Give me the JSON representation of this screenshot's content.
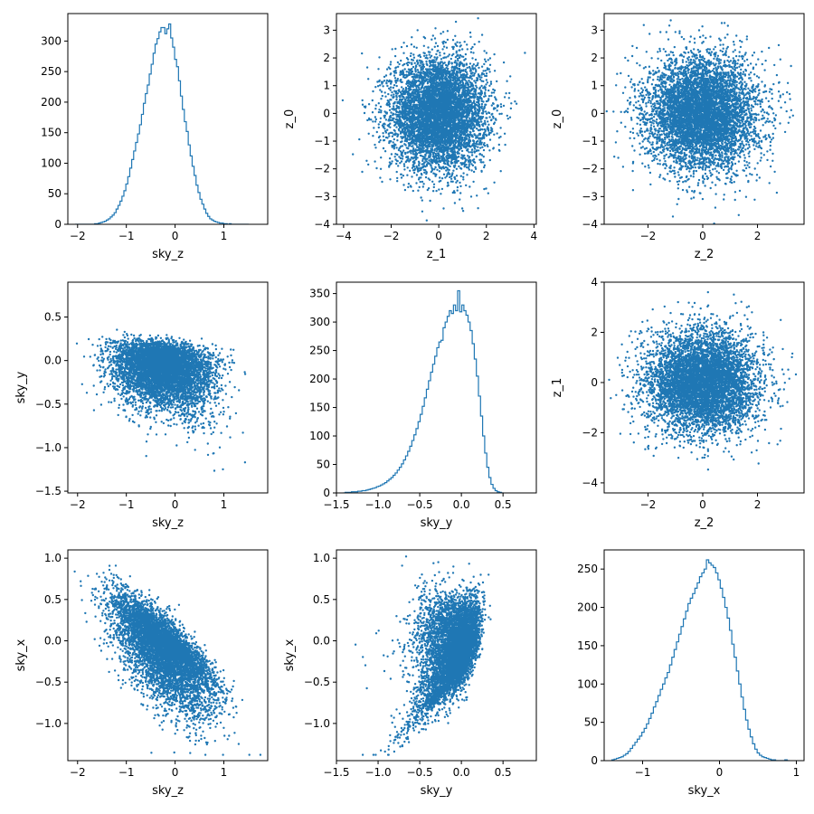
{
  "chart_data": [
    {
      "type": "histogram",
      "xlabel": "sky_z",
      "ylabel": "",
      "xlim": [
        -2.2,
        1.9
      ],
      "ylim": [
        0,
        345
      ],
      "xticks": [
        -2,
        -1,
        0,
        1
      ],
      "xtick_labels": [
        "−2",
        "−1",
        "0",
        "1"
      ],
      "yticks": [
        0,
        50,
        100,
        150,
        200,
        250,
        300
      ],
      "ytick_labels": [
        "0",
        "50",
        "100",
        "150",
        "200",
        "250",
        "300"
      ],
      "bin_start": -2.05,
      "bin_width": 0.04,
      "counts": [
        0,
        0,
        0,
        0,
        0,
        0,
        0,
        0,
        0,
        0,
        1,
        1,
        2,
        3,
        4,
        5,
        7,
        9,
        12,
        15,
        19,
        25,
        31,
        38,
        46,
        55,
        66,
        78,
        92,
        106,
        120,
        134,
        148,
        163,
        180,
        198,
        214,
        228,
        246,
        262,
        280,
        295,
        304,
        315,
        322,
        322,
        312,
        320,
        328,
        305,
        290,
        270,
        258,
        235,
        210,
        188,
        168,
        152,
        130,
        112,
        95,
        80,
        64,
        52,
        41,
        33,
        25,
        18,
        13,
        9,
        7,
        5,
        4,
        3,
        2,
        2,
        1,
        1,
        0,
        1,
        0,
        0,
        0,
        0,
        0,
        0,
        0,
        0,
        0
      ],
      "color": "#1f77b4"
    },
    {
      "type": "scatter",
      "xlabel": "z_1",
      "ylabel": "z_0",
      "xlim": [
        -4.3,
        4.1
      ],
      "ylim": [
        -4.0,
        3.6
      ],
      "xticks": [
        -4,
        -2,
        0,
        2,
        4
      ],
      "xtick_labels": [
        "−4",
        "−2",
        "0",
        "2",
        "4"
      ],
      "yticks": [
        -4,
        -3,
        -2,
        -1,
        0,
        1,
        2,
        3
      ],
      "ytick_labels": [
        "−4",
        "−3",
        "−2",
        "−1",
        "0",
        "1",
        "2",
        "3"
      ],
      "distribution": {
        "kind": "independent-normal",
        "x_mean": 0,
        "x_sd": 1,
        "y_mean": 0,
        "y_sd": 1,
        "points": 6000
      },
      "color": "#1f77b4"
    },
    {
      "type": "scatter",
      "xlabel": "z_2",
      "ylabel": "z_0",
      "xlim": [
        -3.6,
        3.7
      ],
      "ylim": [
        -4.0,
        3.6
      ],
      "xticks": [
        -2,
        0,
        2
      ],
      "xtick_labels": [
        "−2",
        "0",
        "2"
      ],
      "yticks": [
        -4,
        -3,
        -2,
        -1,
        0,
        1,
        2,
        3
      ],
      "ytick_labels": [
        "−4",
        "−3",
        "−2",
        "−1",
        "0",
        "1",
        "2",
        "3"
      ],
      "distribution": {
        "kind": "independent-normal",
        "x_mean": 0,
        "x_sd": 1,
        "y_mean": 0,
        "y_sd": 1,
        "points": 6000
      },
      "color": "#1f77b4"
    },
    {
      "type": "scatter",
      "xlabel": "sky_z",
      "ylabel": "sky_y",
      "xlim": [
        -2.2,
        1.9
      ],
      "ylim": [
        -1.52,
        0.9
      ],
      "xticks": [
        -2,
        -1,
        0,
        1
      ],
      "xtick_labels": [
        "−2",
        "−1",
        "0",
        "1"
      ],
      "yticks": [
        -1.5,
        -1.0,
        -0.5,
        0.0,
        0.5
      ],
      "ytick_labels": [
        "−1.5",
        "−1.0",
        "−0.5",
        "0.0",
        "0.5"
      ],
      "distribution": {
        "kind": "sky-projection",
        "x_axis": "sky_z",
        "y_axis": "sky_y",
        "points": 6000
      },
      "color": "#1f77b4"
    },
    {
      "type": "histogram",
      "xlabel": "sky_y",
      "ylabel": "",
      "xlim": [
        -1.5,
        0.9
      ],
      "ylim": [
        0,
        370
      ],
      "xticks": [
        -1.5,
        -1.0,
        -0.5,
        0.0,
        0.5
      ],
      "xtick_labels": [
        "−1.5",
        "−1.0",
        "−0.5",
        "0.0",
        "0.5"
      ],
      "yticks": [
        0,
        50,
        100,
        150,
        200,
        250,
        300,
        350
      ],
      "ytick_labels": [
        "0",
        "50",
        "100",
        "150",
        "200",
        "250",
        "300",
        "350"
      ],
      "bin_start": -1.42,
      "bin_width": 0.025,
      "counts": [
        0,
        1,
        1,
        1,
        2,
        2,
        2,
        3,
        3,
        4,
        4,
        5,
        6,
        7,
        8,
        9,
        11,
        12,
        14,
        16,
        18,
        21,
        24,
        27,
        31,
        35,
        40,
        45,
        51,
        58,
        65,
        73,
        82,
        92,
        102,
        113,
        125,
        138,
        152,
        167,
        182,
        197,
        212,
        226,
        240,
        255,
        265,
        268,
        290,
        300,
        310,
        320,
        315,
        330,
        320,
        355,
        318,
        330,
        320,
        312,
        300,
        285,
        262,
        235,
        205,
        170,
        135,
        100,
        70,
        45,
        27,
        15,
        8,
        4,
        2,
        1,
        0
      ],
      "color": "#1f77b4"
    },
    {
      "type": "scatter",
      "xlabel": "z_2",
      "ylabel": "z_1",
      "xlim": [
        -3.6,
        3.7
      ],
      "ylim": [
        -4.4,
        4.0
      ],
      "xticks": [
        -2,
        0,
        2
      ],
      "xtick_labels": [
        "−2",
        "0",
        "2"
      ],
      "yticks": [
        -4,
        -2,
        0,
        2,
        4
      ],
      "ytick_labels": [
        "−4",
        "−2",
        "0",
        "2",
        "4"
      ],
      "distribution": {
        "kind": "independent-normal",
        "x_mean": 0,
        "x_sd": 1,
        "y_mean": 0,
        "y_sd": 1,
        "points": 6000
      },
      "color": "#1f77b4"
    },
    {
      "type": "scatter",
      "xlabel": "sky_z",
      "ylabel": "sky_x",
      "xlim": [
        -2.2,
        1.9
      ],
      "ylim": [
        -1.45,
        1.1
      ],
      "xticks": [
        -2,
        -1,
        0,
        1
      ],
      "xtick_labels": [
        "−2",
        "−1",
        "0",
        "1"
      ],
      "yticks": [
        -1.0,
        -0.5,
        0.0,
        0.5,
        1.0
      ],
      "ytick_labels": [
        "−1.0",
        "−0.5",
        "0.0",
        "0.5",
        "1.0"
      ],
      "distribution": {
        "kind": "sky-projection",
        "x_axis": "sky_z",
        "y_axis": "sky_x",
        "points": 6000
      },
      "color": "#1f77b4"
    },
    {
      "type": "scatter",
      "xlabel": "sky_y",
      "ylabel": "sky_x",
      "xlim": [
        -1.5,
        0.9
      ],
      "ylim": [
        -1.45,
        1.1
      ],
      "xticks": [
        -1.5,
        -1.0,
        -0.5,
        0.0,
        0.5
      ],
      "xtick_labels": [
        "−1.5",
        "−1.0",
        "−0.5",
        "0.0",
        "0.5"
      ],
      "yticks": [
        -1.0,
        -0.5,
        0.0,
        0.5,
        1.0
      ],
      "ytick_labels": [
        "−1.0",
        "−0.5",
        "0.0",
        "0.5",
        "1.0"
      ],
      "distribution": {
        "kind": "sky-projection",
        "x_axis": "sky_y",
        "y_axis": "sky_x",
        "points": 6000
      },
      "color": "#1f77b4"
    },
    {
      "type": "histogram",
      "xlabel": "sky_x",
      "ylabel": "",
      "xlim": [
        -1.5,
        1.1
      ],
      "ylim": [
        0,
        275
      ],
      "xticks": [
        -1,
        0,
        1
      ],
      "xtick_labels": [
        "−1",
        "0",
        "1"
      ],
      "yticks": [
        0,
        50,
        100,
        150,
        200,
        250
      ],
      "ytick_labels": [
        "0",
        "50",
        "100",
        "150",
        "200",
        "250"
      ],
      "bin_start": -1.4,
      "bin_width": 0.03,
      "counts": [
        1,
        2,
        3,
        4,
        5,
        7,
        9,
        12,
        16,
        20,
        24,
        28,
        32,
        37,
        42,
        48,
        55,
        62,
        70,
        77,
        85,
        93,
        100,
        108,
        115,
        125,
        135,
        145,
        155,
        165,
        175,
        185,
        195,
        205,
        212,
        218,
        225,
        232,
        240,
        245,
        250,
        262,
        258,
        255,
        252,
        245,
        236,
        225,
        213,
        200,
        186,
        170,
        152,
        135,
        117,
        100,
        83,
        67,
        53,
        41,
        31,
        22,
        15,
        10,
        7,
        5,
        4,
        3,
        2,
        1,
        1,
        0,
        0,
        0,
        0,
        1,
        0
      ],
      "color": "#1f77b4"
    }
  ]
}
